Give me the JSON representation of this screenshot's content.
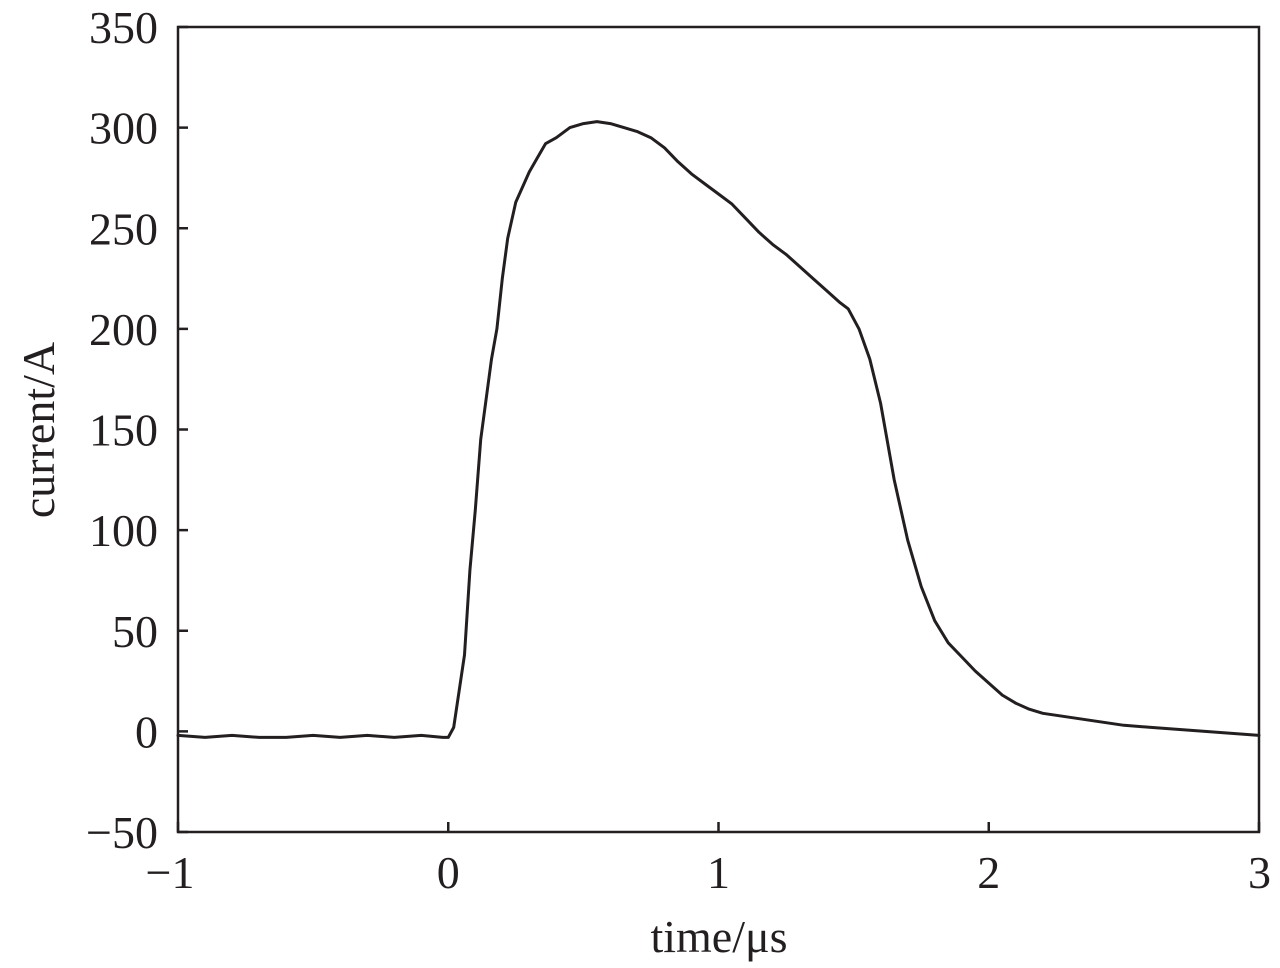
{
  "chart_data": {
    "type": "line",
    "title": "",
    "xlabel": "time/μs",
    "ylabel": "current/A",
    "xlim": [
      -1,
      3
    ],
    "ylim": [
      -50,
      350
    ],
    "x_ticks": [
      -1,
      0,
      1,
      2,
      3
    ],
    "x_tick_labels": [
      "−1",
      "0",
      "1",
      "2",
      "3"
    ],
    "y_ticks": [
      -50,
      0,
      50,
      100,
      150,
      200,
      250,
      300,
      350
    ],
    "y_tick_labels": [
      "−50",
      "0",
      "50",
      "100",
      "150",
      "200",
      "250",
      "300",
      "350"
    ],
    "grid": false,
    "legend": "none",
    "line_color": "#231f20",
    "series": [
      {
        "x": [
          -1.0,
          -0.9,
          -0.8,
          -0.7,
          -0.6,
          -0.5,
          -0.4,
          -0.3,
          -0.2,
          -0.1,
          -0.02,
          0.0,
          0.02,
          0.04,
          0.06,
          0.08,
          0.1,
          0.12,
          0.14,
          0.16,
          0.18,
          0.2,
          0.22,
          0.25,
          0.28,
          0.3,
          0.33,
          0.36,
          0.4,
          0.45,
          0.5,
          0.55,
          0.6,
          0.65,
          0.7,
          0.75,
          0.8,
          0.85,
          0.9,
          0.95,
          1.0,
          1.05,
          1.1,
          1.15,
          1.2,
          1.25,
          1.3,
          1.35,
          1.4,
          1.45,
          1.48,
          1.52,
          1.56,
          1.6,
          1.65,
          1.7,
          1.75,
          1.8,
          1.85,
          1.9,
          1.95,
          2.0,
          2.05,
          2.1,
          2.15,
          2.2,
          2.3,
          2.4,
          2.5,
          2.6,
          2.7,
          2.8,
          2.9,
          3.0
        ],
        "y": [
          -2,
          -3,
          -2,
          -3,
          -3,
          -2,
          -3,
          -2,
          -3,
          -2,
          -3,
          -3,
          2,
          20,
          38,
          80,
          110,
          145,
          165,
          185,
          200,
          225,
          245,
          263,
          272,
          278,
          285,
          292,
          295,
          300,
          302,
          303,
          302,
          300,
          298,
          295,
          290,
          283,
          277,
          272,
          267,
          262,
          255,
          248,
          242,
          237,
          231,
          225,
          219,
          213,
          210,
          200,
          185,
          163,
          125,
          95,
          72,
          55,
          44,
          37,
          30,
          24,
          18,
          14,
          11,
          9,
          7,
          5,
          3,
          2,
          1,
          0,
          -1,
          -2
        ]
      }
    ]
  }
}
